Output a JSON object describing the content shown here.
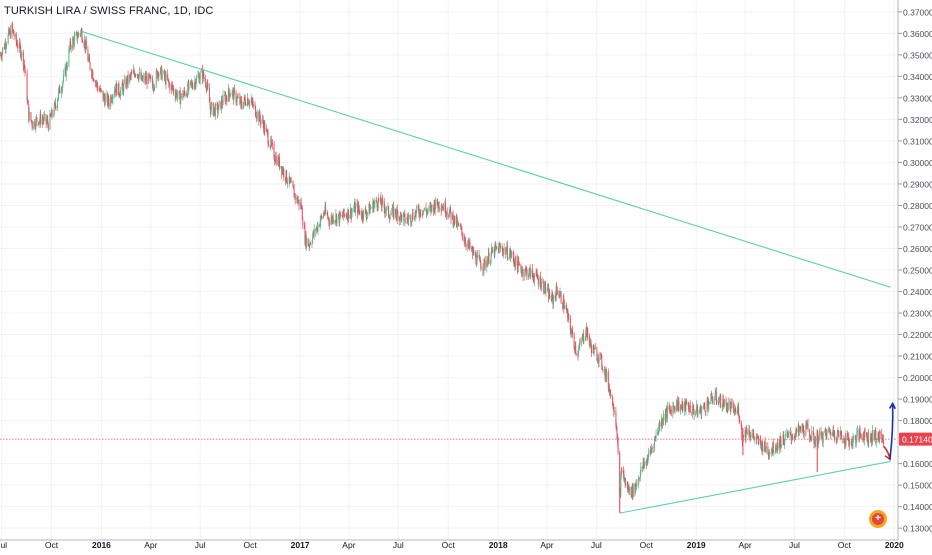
{
  "header": {
    "title": "TURKISH LIRA / SWISS FRANC, 1D, IDC"
  },
  "colors": {
    "up": "#53b987",
    "down": "#eb4d5c",
    "trendline": "#5fcfa9",
    "price_line": "#eb4d5c",
    "price_tag_bg": "#e9424f",
    "arrow_down": "#d32f2f",
    "arrow_up": "#1a33a8",
    "grid": "#f0f3fa",
    "axis_text": "#4a4e59",
    "logo": "#f5a623"
  },
  "chart_data": {
    "type": "candlestick",
    "title": "TURKISH LIRA / SWISS FRANC, 1D, IDC",
    "ylim": [
      0.1245,
      0.3755
    ],
    "xlim": [
      "2015-06-28",
      "2020-01-06"
    ],
    "y_ticks": [
      "0.37000",
      "0.36000",
      "0.35000",
      "0.34000",
      "0.33000",
      "0.32000",
      "0.31000",
      "0.30000",
      "0.29000",
      "0.28000",
      "0.27000",
      "0.26000",
      "0.25000",
      "0.24000",
      "0.23000",
      "0.22000",
      "0.21000",
      "0.20000",
      "0.19000",
      "0.18000",
      "0.16000",
      "0.15000",
      "0.14000",
      "0.13000"
    ],
    "x_ticks": [
      {
        "label": "Jul",
        "date": "2015-07-01"
      },
      {
        "label": "Oct",
        "date": "2015-10-01"
      },
      {
        "label": "2016",
        "date": "2016-01-01"
      },
      {
        "label": "Apr",
        "date": "2016-04-01"
      },
      {
        "label": "Jul",
        "date": "2016-07-01"
      },
      {
        "label": "Oct",
        "date": "2016-10-01"
      },
      {
        "label": "2017",
        "date": "2017-01-01"
      },
      {
        "label": "Apr",
        "date": "2017-04-01"
      },
      {
        "label": "Jul",
        "date": "2017-07-01"
      },
      {
        "label": "Oct",
        "date": "2017-10-01"
      },
      {
        "label": "2018",
        "date": "2018-01-01"
      },
      {
        "label": "Apr",
        "date": "2018-04-01"
      },
      {
        "label": "Jul",
        "date": "2018-07-01"
      },
      {
        "label": "Oct",
        "date": "2018-10-01"
      },
      {
        "label": "2019",
        "date": "2019-01-01"
      },
      {
        "label": "Apr",
        "date": "2019-04-01"
      },
      {
        "label": "Jul",
        "date": "2019-07-01"
      },
      {
        "label": "Oct",
        "date": "2019-10-01"
      },
      {
        "label": "2020",
        "date": "2020-01-01"
      }
    ],
    "last_price": 0.1714,
    "last_price_label": "0.17140",
    "price_path": [
      [
        "2015-06-29",
        0.35
      ],
      [
        "2015-07-10",
        0.357
      ],
      [
        "2015-07-20",
        0.362
      ],
      [
        "2015-07-28",
        0.356
      ],
      [
        "2015-08-05",
        0.352
      ],
      [
        "2015-08-12",
        0.345
      ],
      [
        "2015-08-20",
        0.322
      ],
      [
        "2015-08-27",
        0.318
      ],
      [
        "2015-09-05",
        0.32
      ],
      [
        "2015-09-15",
        0.32
      ],
      [
        "2015-09-25",
        0.318
      ],
      [
        "2015-10-05",
        0.324
      ],
      [
        "2015-10-15",
        0.333
      ],
      [
        "2015-10-25",
        0.34
      ],
      [
        "2015-11-05",
        0.355
      ],
      [
        "2015-11-15",
        0.358
      ],
      [
        "2015-11-24",
        0.361
      ],
      [
        "2015-12-01",
        0.356
      ],
      [
        "2015-12-08",
        0.347
      ],
      [
        "2015-12-15",
        0.342
      ],
      [
        "2015-12-25",
        0.335
      ],
      [
        "2016-01-05",
        0.33
      ],
      [
        "2016-01-15",
        0.328
      ],
      [
        "2016-01-25",
        0.335
      ],
      [
        "2016-02-05",
        0.333
      ],
      [
        "2016-02-15",
        0.337
      ],
      [
        "2016-02-25",
        0.34
      ],
      [
        "2016-03-05",
        0.343
      ],
      [
        "2016-03-15",
        0.338
      ],
      [
        "2016-03-25",
        0.339
      ],
      [
        "2016-04-05",
        0.336
      ],
      [
        "2016-04-15",
        0.343
      ],
      [
        "2016-04-25",
        0.34
      ],
      [
        "2016-05-05",
        0.336
      ],
      [
        "2016-05-15",
        0.333
      ],
      [
        "2016-05-25",
        0.33
      ],
      [
        "2016-06-05",
        0.333
      ],
      [
        "2016-06-15",
        0.336
      ],
      [
        "2016-06-25",
        0.339
      ],
      [
        "2016-07-05",
        0.341
      ],
      [
        "2016-07-12",
        0.337
      ],
      [
        "2016-07-20",
        0.325
      ],
      [
        "2016-08-01",
        0.324
      ],
      [
        "2016-08-15",
        0.33
      ],
      [
        "2016-08-25",
        0.333
      ],
      [
        "2016-09-05",
        0.33
      ],
      [
        "2016-09-15",
        0.327
      ],
      [
        "2016-09-25",
        0.33
      ],
      [
        "2016-10-05",
        0.327
      ],
      [
        "2016-10-15",
        0.322
      ],
      [
        "2016-10-25",
        0.318
      ],
      [
        "2016-11-05",
        0.31
      ],
      [
        "2016-11-15",
        0.303
      ],
      [
        "2016-11-25",
        0.299
      ],
      [
        "2016-12-05",
        0.294
      ],
      [
        "2016-12-15",
        0.289
      ],
      [
        "2016-12-25",
        0.283
      ],
      [
        "2017-01-03",
        0.28
      ],
      [
        "2017-01-10",
        0.265
      ],
      [
        "2017-01-17",
        0.262
      ],
      [
        "2017-01-25",
        0.266
      ],
      [
        "2017-02-05",
        0.272
      ],
      [
        "2017-02-15",
        0.277
      ],
      [
        "2017-02-25",
        0.273
      ],
      [
        "2017-03-05",
        0.275
      ],
      [
        "2017-03-15",
        0.274
      ],
      [
        "2017-03-25",
        0.276
      ],
      [
        "2017-04-05",
        0.277
      ],
      [
        "2017-04-15",
        0.279
      ],
      [
        "2017-04-25",
        0.276
      ],
      [
        "2017-05-05",
        0.277
      ],
      [
        "2017-05-15",
        0.28
      ],
      [
        "2017-05-25",
        0.282
      ],
      [
        "2017-06-05",
        0.279
      ],
      [
        "2017-06-15",
        0.276
      ],
      [
        "2017-06-25",
        0.277
      ],
      [
        "2017-07-05",
        0.275
      ],
      [
        "2017-07-15",
        0.273
      ],
      [
        "2017-07-25",
        0.275
      ],
      [
        "2017-08-05",
        0.277
      ],
      [
        "2017-08-15",
        0.278
      ],
      [
        "2017-08-25",
        0.277
      ],
      [
        "2017-09-05",
        0.28
      ],
      [
        "2017-09-15",
        0.281
      ],
      [
        "2017-09-25",
        0.279
      ],
      [
        "2017-10-05",
        0.276
      ],
      [
        "2017-10-15",
        0.272
      ],
      [
        "2017-10-25",
        0.268
      ],
      [
        "2017-11-05",
        0.262
      ],
      [
        "2017-11-15",
        0.258
      ],
      [
        "2017-11-25",
        0.254
      ],
      [
        "2017-12-05",
        0.252
      ],
      [
        "2017-12-15",
        0.256
      ],
      [
        "2017-12-25",
        0.259
      ],
      [
        "2018-01-05",
        0.26
      ],
      [
        "2018-01-15",
        0.259
      ],
      [
        "2018-01-25",
        0.257
      ],
      [
        "2018-02-05",
        0.252
      ],
      [
        "2018-02-15",
        0.25
      ],
      [
        "2018-02-25",
        0.249
      ],
      [
        "2018-03-05",
        0.248
      ],
      [
        "2018-03-15",
        0.246
      ],
      [
        "2018-03-25",
        0.243
      ],
      [
        "2018-04-05",
        0.238
      ],
      [
        "2018-04-12",
        0.236
      ],
      [
        "2018-04-20",
        0.241
      ],
      [
        "2018-04-27",
        0.237
      ],
      [
        "2018-05-05",
        0.232
      ],
      [
        "2018-05-12",
        0.225
      ],
      [
        "2018-05-20",
        0.217
      ],
      [
        "2018-05-27",
        0.211
      ],
      [
        "2018-06-05",
        0.218
      ],
      [
        "2018-06-12",
        0.222
      ],
      [
        "2018-06-20",
        0.215
      ],
      [
        "2018-06-27",
        0.212
      ],
      [
        "2018-07-05",
        0.21
      ],
      [
        "2018-07-12",
        0.206
      ],
      [
        "2018-07-20",
        0.2
      ],
      [
        "2018-07-27",
        0.193
      ],
      [
        "2018-08-03",
        0.186
      ],
      [
        "2018-08-08",
        0.175
      ],
      [
        "2018-08-13",
        0.145
      ],
      [
        "2018-08-17",
        0.158
      ],
      [
        "2018-08-22",
        0.152
      ],
      [
        "2018-08-28",
        0.148
      ],
      [
        "2018-09-05",
        0.147
      ],
      [
        "2018-09-12",
        0.15
      ],
      [
        "2018-09-20",
        0.156
      ],
      [
        "2018-09-28",
        0.16
      ],
      [
        "2018-10-05",
        0.163
      ],
      [
        "2018-10-15",
        0.17
      ],
      [
        "2018-10-25",
        0.178
      ],
      [
        "2018-11-05",
        0.183
      ],
      [
        "2018-11-15",
        0.185
      ],
      [
        "2018-11-25",
        0.188
      ],
      [
        "2018-12-05",
        0.186
      ],
      [
        "2018-12-15",
        0.187
      ],
      [
        "2018-12-25",
        0.185
      ],
      [
        "2019-01-05",
        0.184
      ],
      [
        "2019-01-15",
        0.186
      ],
      [
        "2019-01-25",
        0.189
      ],
      [
        "2019-02-05",
        0.191
      ],
      [
        "2019-02-15",
        0.189
      ],
      [
        "2019-02-25",
        0.187
      ],
      [
        "2019-03-05",
        0.186
      ],
      [
        "2019-03-15",
        0.184
      ],
      [
        "2019-03-20",
        0.185
      ],
      [
        "2019-03-27",
        0.172
      ],
      [
        "2019-04-05",
        0.176
      ],
      [
        "2019-04-15",
        0.173
      ],
      [
        "2019-04-25",
        0.17
      ],
      [
        "2019-05-05",
        0.168
      ],
      [
        "2019-05-15",
        0.166
      ],
      [
        "2019-05-25",
        0.168
      ],
      [
        "2019-06-05",
        0.17
      ],
      [
        "2019-06-15",
        0.172
      ],
      [
        "2019-06-25",
        0.173
      ],
      [
        "2019-07-05",
        0.174
      ],
      [
        "2019-07-15",
        0.176
      ],
      [
        "2019-07-25",
        0.176
      ],
      [
        "2019-08-05",
        0.171
      ],
      [
        "2019-08-15",
        0.172
      ],
      [
        "2019-08-25",
        0.173
      ],
      [
        "2019-09-05",
        0.175
      ],
      [
        "2019-09-15",
        0.174
      ],
      [
        "2019-09-25",
        0.173
      ],
      [
        "2019-10-05",
        0.171
      ],
      [
        "2019-10-15",
        0.17
      ],
      [
        "2019-10-25",
        0.173
      ],
      [
        "2019-11-05",
        0.174
      ],
      [
        "2019-11-15",
        0.172
      ],
      [
        "2019-11-25",
        0.173
      ],
      [
        "2019-12-05",
        0.172
      ],
      [
        "2019-12-12",
        0.1714
      ]
    ],
    "spike_lows": [
      {
        "date": "2018-08-13",
        "low": 0.137
      },
      {
        "date": "2019-08-12",
        "low": 0.156
      },
      {
        "date": "2019-03-28",
        "low": 0.164
      }
    ],
    "trendlines": [
      {
        "name": "upper",
        "from": [
          "2015-11-24",
          0.361
        ],
        "to": [
          "2019-12-25",
          0.242
        ]
      },
      {
        "name": "lower",
        "from": [
          "2018-08-13",
          0.137
        ],
        "to": [
          "2019-12-25",
          0.161
        ]
      }
    ],
    "annotations": [
      {
        "name": "down-arrow",
        "from": [
          "2019-12-13",
          0.168
        ],
        "to": [
          "2019-12-24",
          0.162
        ]
      },
      {
        "name": "up-arrow",
        "from": [
          "2019-12-24",
          0.162
        ],
        "to": [
          "2019-12-29",
          0.188
        ]
      }
    ]
  }
}
